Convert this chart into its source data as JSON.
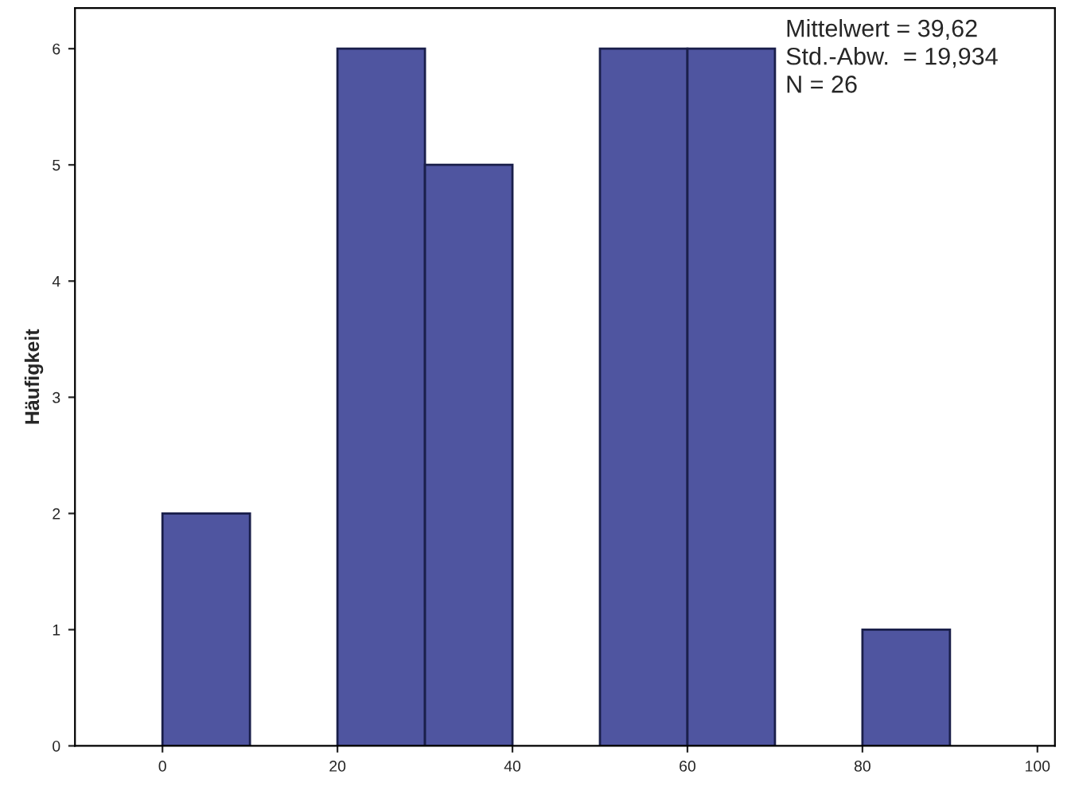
{
  "chart_data": {
    "type": "histogram",
    "ylabel": "Häufigkeit",
    "bins": [
      0,
      10,
      20,
      30,
      40,
      50,
      60,
      70,
      80,
      90
    ],
    "values": [
      2,
      0,
      6,
      5,
      0,
      6,
      6,
      0,
      1
    ],
    "color": "#4f55a0",
    "xlim": [
      -10,
      102
    ],
    "xticks": [
      0,
      20,
      40,
      60,
      80,
      100
    ],
    "ylim": [
      0,
      6.35
    ],
    "yticks": [
      0,
      1,
      2,
      3,
      4,
      5,
      6
    ],
    "grid": false,
    "annotations": [
      "Mittelwert = 39,62\nStd.-Abw.  = 19,934\nN = 26"
    ]
  }
}
